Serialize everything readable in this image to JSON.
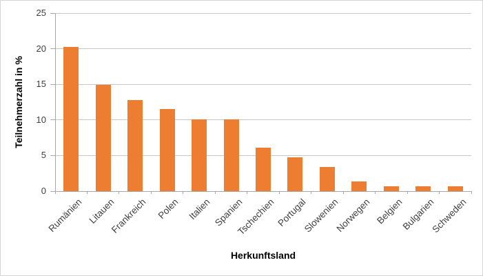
{
  "chart_data": {
    "type": "bar",
    "title": "",
    "xlabel": "Herkunftsland",
    "ylabel": "Teilnehmerzahl in %",
    "categories": [
      "Rumänien",
      "Litauen",
      "Frankreich",
      "Polen",
      "Italien",
      "Spanien",
      "Tschechien",
      "Portugal",
      "Slowenien",
      "Norwegen",
      "Belgien",
      "Bulgarien",
      "Schweden"
    ],
    "values": [
      20.3,
      14.9,
      12.8,
      11.5,
      10.1,
      10.1,
      6.1,
      4.7,
      3.4,
      1.4,
      0.7,
      0.7,
      0.7
    ],
    "ylim": [
      0,
      25
    ],
    "yticks": [
      0,
      5,
      10,
      15,
      20,
      25
    ],
    "grid": true,
    "legend_position": "none"
  },
  "colors": {
    "bar": "#ED7D31",
    "gridline": "#C6C6C6",
    "axis_line": "#A6A6A6",
    "tick_text": "#3F3F3F",
    "title_text": "#000000",
    "frame_border": "#D4D4D4",
    "background": "#FFFFFF"
  }
}
